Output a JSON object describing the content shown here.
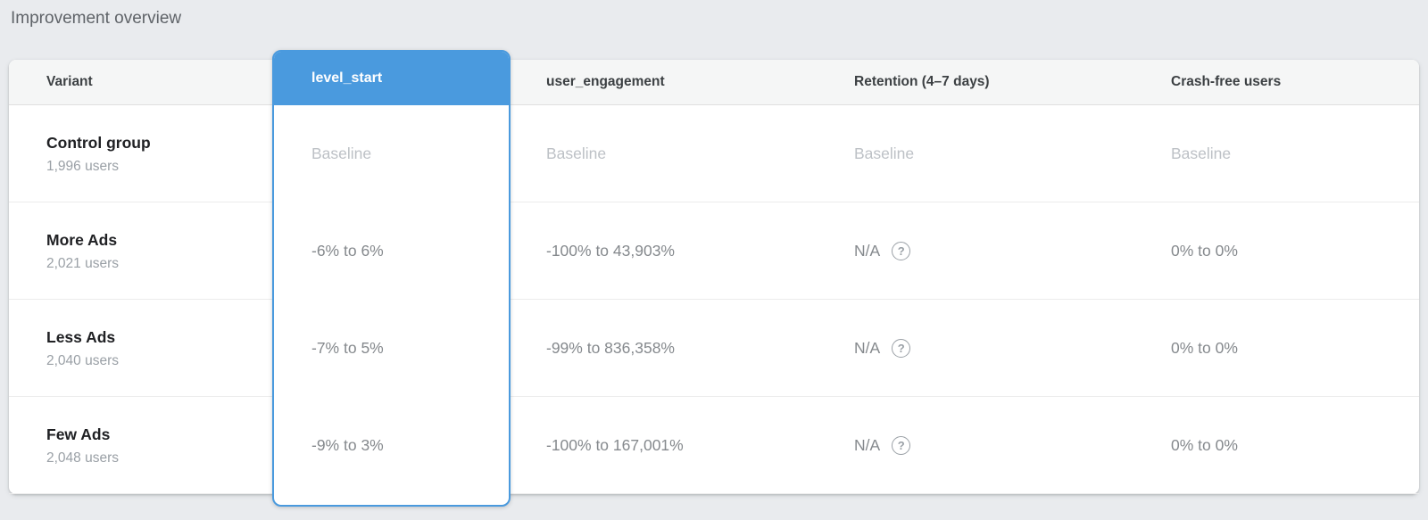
{
  "page": {
    "title": "Improvement overview"
  },
  "table": {
    "headers": {
      "variant": "Variant",
      "level_start": "level_start",
      "user_engagement": "user_engagement",
      "retention": "Retention (4–7 days)",
      "crash_free": "Crash-free users"
    },
    "rows": [
      {
        "name": "Control group",
        "users": "1,996 users",
        "level_start": "Baseline",
        "user_engagement": "Baseline",
        "retention": "Baseline",
        "crash_free": "Baseline"
      },
      {
        "name": "More Ads",
        "users": "2,021 users",
        "level_start": "-6% to 6%",
        "user_engagement": "-100% to 43,903%",
        "retention": "N/A",
        "crash_free": "0% to 0%"
      },
      {
        "name": "Less Ads",
        "users": "2,040 users",
        "level_start": "-7% to 5%",
        "user_engagement": "-99% to 836,358%",
        "retention": "N/A",
        "crash_free": "0% to 0%"
      },
      {
        "name": "Few Ads",
        "users": "2,048 users",
        "level_start": "-9% to 3%",
        "user_engagement": "-100% to 167,001%",
        "retention": "N/A",
        "crash_free": "0% to 0%"
      }
    ]
  },
  "icons": {
    "help": "?"
  },
  "colors": {
    "accent_blue": "#4a9ade",
    "page_background": "#e9ebee",
    "baseline_text": "#bdc1c6",
    "value_text": "#85898d"
  }
}
